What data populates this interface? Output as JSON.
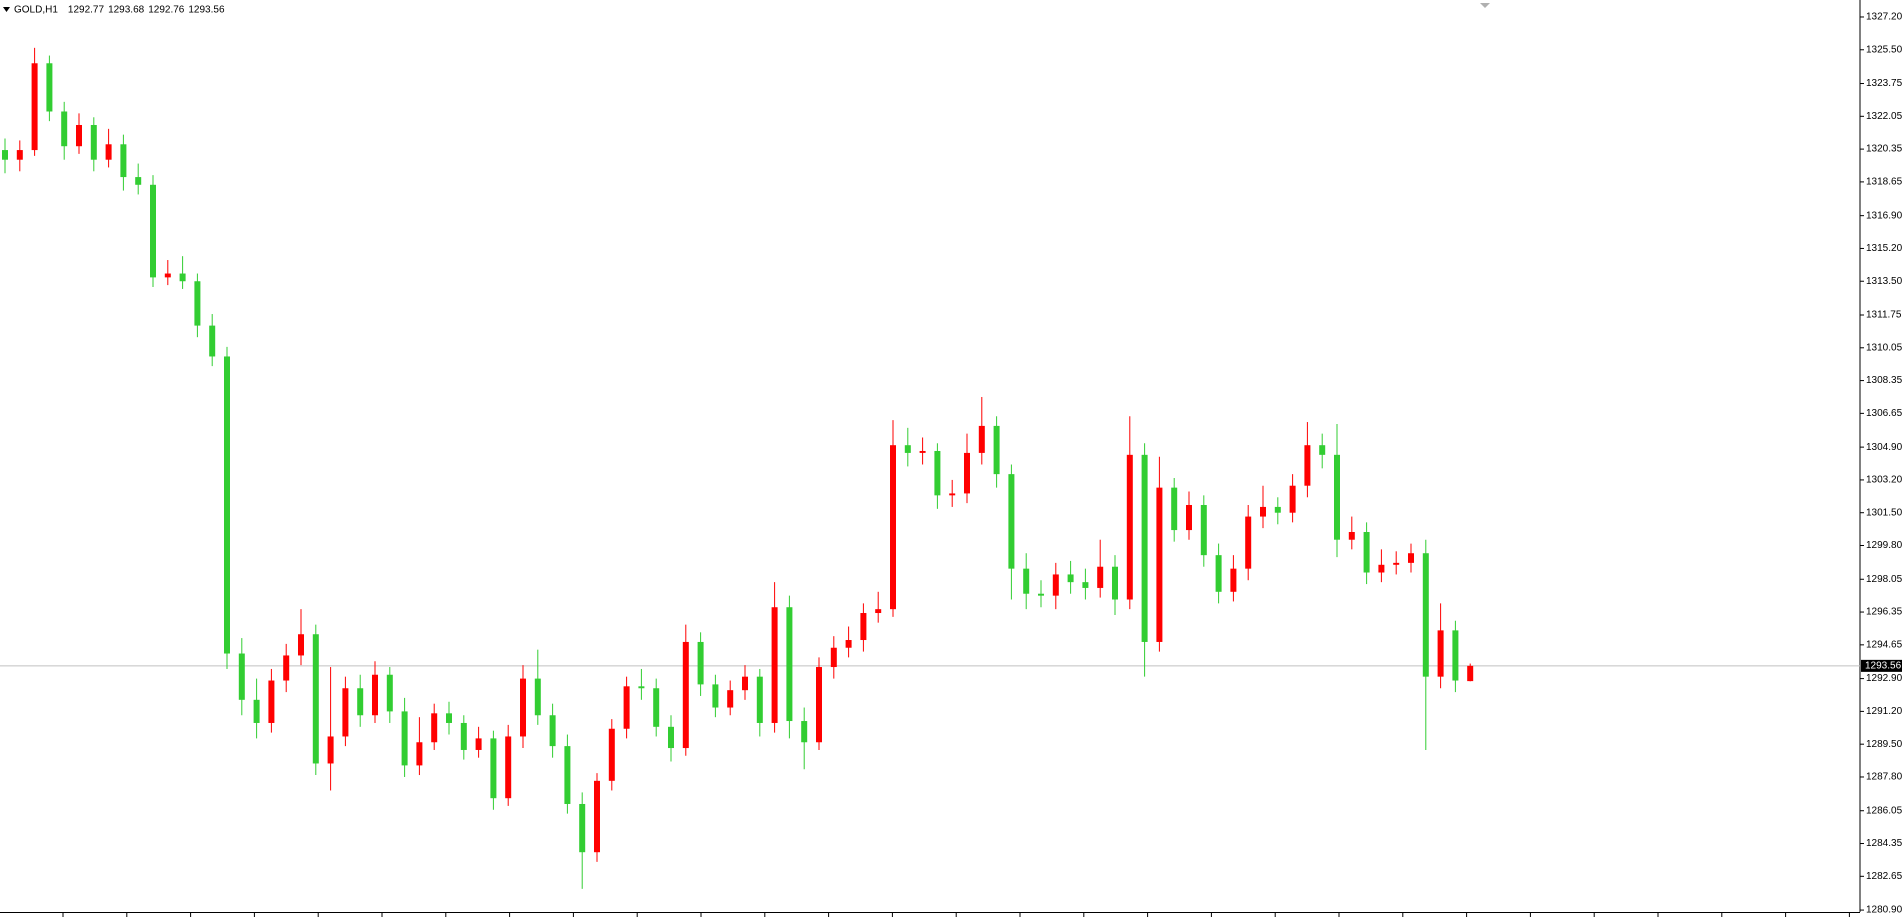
{
  "chart_data": {
    "type": "candlestick",
    "title": "GOLD,H1",
    "up_color": "#ff0000",
    "down_color": "#32cd32",
    "background": "#ffffff",
    "ylim": [
      1280.8,
      1328.08
    ],
    "yticks": [
      {
        "value": 1327.2,
        "label": "1327.20"
      },
      {
        "value": 1325.5,
        "label": "1325.50"
      },
      1323.75,
      1322.05,
      1320.35,
      1318.65,
      {
        "value": 1316.9,
        "label": "1316.90"
      },
      {
        "value": 1315.2,
        "label": "1315.20"
      },
      {
        "value": 1313.5,
        "label": "1313.50"
      },
      1311.75,
      1310.05,
      1308.35,
      1306.65,
      {
        "value": 1304.9,
        "label": "1304.90"
      },
      {
        "value": 1303.2,
        "label": "1303.20"
      },
      {
        "value": 1301.5,
        "label": "1301.50"
      },
      {
        "value": 1299.8,
        "label": "1299.80"
      },
      1298.05,
      1296.35,
      1294.65,
      {
        "value": 1292.9,
        "label": "1292.90"
      },
      {
        "value": 1291.2,
        "label": "1291.20"
      },
      {
        "value": 1289.5,
        "label": "1289.50"
      },
      {
        "value": 1287.8,
        "label": "1287.80"
      },
      1286.05,
      1284.35,
      1282.65,
      {
        "value": 1280.9,
        "label": "1280.90"
      }
    ],
    "open": [
      1320.3,
      1319.8,
      1320.3,
      1324.8,
      1322.3,
      1320.5,
      1321.6,
      1319.8,
      1320.6,
      1318.9,
      1318.5,
      1313.7,
      1313.9,
      1313.5,
      1311.2,
      1309.6,
      1294.2,
      1291.8,
      1290.6,
      1292.8,
      1294.1,
      1295.2,
      1288.5,
      1289.9,
      1292.4,
      1291,
      1293.1,
      1291.2,
      1288.4,
      1289.6,
      1291.1,
      1290.6,
      1289.2,
      1289.8,
      1286.7,
      1289.9,
      1292.9,
      1291,
      1289.4,
      1286.4,
      1283.9,
      1287.6,
      1290.3,
      1292.5,
      1292.4,
      1290.4,
      1289.3,
      1294.8,
      1292.6,
      1291.4,
      1292.3,
      1293,
      1290.6,
      1296.6,
      1290.7,
      1289.6,
      1293.5,
      1294.5,
      1294.9,
      1296.3,
      1296.5,
      1305,
      1304.6,
      1304.7,
      1302.4,
      1302.5,
      1304.6,
      1306,
      1303.5,
      1298.6,
      1297.3,
      1297.2,
      1298.3,
      1297.9,
      1297.6,
      1298.7,
      1297,
      1304.5,
      1294.8,
      1302.8,
      1300.6,
      1301.9,
      1299.3,
      1297.4,
      1298.6,
      1301.3,
      1301.8,
      1301.5,
      1302.9,
      1305,
      1304.5,
      1300.1,
      1300.5,
      1298.4,
      1298.8,
      1298.9,
      1299.4,
      1293,
      1295.4,
      1292.77
    ],
    "high": [
      1320.9,
      1320.8,
      1325.6,
      1325.2,
      1322.8,
      1322.2,
      1322,
      1321.4,
      1321.1,
      1319.6,
      1319,
      1314.6,
      1314.8,
      1313.9,
      1311.8,
      1310.1,
      1295,
      1292.9,
      1293.4,
      1294.7,
      1296.5,
      1295.7,
      1293.5,
      1293,
      1293.1,
      1293.8,
      1293.5,
      1291.9,
      1290.9,
      1291.6,
      1291.7,
      1291,
      1290.4,
      1290.2,
      1290.5,
      1293.6,
      1294.4,
      1291.6,
      1290,
      1287,
      1288,
      1290.8,
      1293,
      1293.4,
      1292.9,
      1291,
      1295.7,
      1295.3,
      1293.1,
      1292.8,
      1293.6,
      1293.4,
      1297.9,
      1297.2,
      1291.4,
      1294,
      1295.1,
      1295.6,
      1296.8,
      1297.4,
      1306.3,
      1305.9,
      1305.4,
      1305.1,
      1303.2,
      1305.6,
      1307.5,
      1306.5,
      1304,
      1299.4,
      1298,
      1298.9,
      1299,
      1298.6,
      1300.1,
      1299.3,
      1306.5,
      1305.1,
      1304.4,
      1303.3,
      1302.6,
      1302.4,
      1299.9,
      1299.3,
      1301.9,
      1302.9,
      1302.3,
      1303.5,
      1306.2,
      1305.6,
      1306.1,
      1301.3,
      1301,
      1299.6,
      1299.5,
      1299.9,
      1300.1,
      1296.8,
      1295.9,
      1293.68
    ],
    "low": [
      1319.1,
      1319.2,
      1320,
      1321.8,
      1319.8,
      1320.1,
      1319.2,
      1319.4,
      1318.2,
      1318,
      1313.2,
      1313.3,
      1313.1,
      1310.6,
      1309.1,
      1293.4,
      1291,
      1289.8,
      1290.1,
      1292.2,
      1293.6,
      1287.9,
      1287.1,
      1289.4,
      1290.4,
      1290.6,
      1290.6,
      1287.8,
      1287.9,
      1289.2,
      1290,
      1288.7,
      1288.8,
      1286.1,
      1286.3,
      1289.3,
      1290.5,
      1288.8,
      1285.9,
      1282,
      1283.4,
      1287.1,
      1289.8,
      1291.8,
      1289.9,
      1288.6,
      1288.9,
      1292,
      1290.9,
      1291,
      1291.8,
      1289.9,
      1290.1,
      1289.8,
      1288.2,
      1289.2,
      1292.9,
      1294,
      1294.3,
      1295.8,
      1296.1,
      1303.9,
      1304,
      1301.7,
      1301.8,
      1302,
      1304,
      1302.8,
      1297,
      1296.5,
      1296.6,
      1296.5,
      1297.3,
      1297,
      1297.1,
      1296.2,
      1296.5,
      1293,
      1294.3,
      1300,
      1300.1,
      1298.7,
      1296.8,
      1296.9,
      1298,
      1300.7,
      1300.9,
      1301,
      1302.3,
      1303.8,
      1299.2,
      1299.6,
      1297.8,
      1297.9,
      1298.3,
      1298.4,
      1289.2,
      1292.4,
      1292.2,
      1292.76
    ],
    "close": [
      1319.8,
      1320.3,
      1324.8,
      1322.3,
      1320.5,
      1321.6,
      1319.8,
      1320.6,
      1318.9,
      1318.5,
      1313.7,
      1313.9,
      1313.5,
      1311.2,
      1309.6,
      1294.2,
      1291.8,
      1290.6,
      1292.8,
      1294.1,
      1295.2,
      1288.5,
      1289.9,
      1292.4,
      1291,
      1293.1,
      1291.2,
      1288.4,
      1289.6,
      1291.1,
      1290.6,
      1289.2,
      1289.8,
      1286.7,
      1289.9,
      1292.9,
      1291,
      1289.4,
      1286.4,
      1283.9,
      1287.6,
      1290.3,
      1292.5,
      1292.4,
      1290.4,
      1289.3,
      1294.8,
      1292.6,
      1291.4,
      1292.3,
      1293,
      1290.6,
      1296.6,
      1290.7,
      1289.6,
      1293.5,
      1294.5,
      1294.9,
      1296.3,
      1296.5,
      1305,
      1304.6,
      1304.7,
      1302.4,
      1302.5,
      1304.6,
      1306,
      1303.5,
      1298.6,
      1297.3,
      1297.2,
      1298.3,
      1297.9,
      1297.6,
      1298.7,
      1297,
      1304.5,
      1294.8,
      1302.8,
      1300.6,
      1301.9,
      1299.3,
      1297.4,
      1298.6,
      1301.3,
      1301.8,
      1301.5,
      1302.9,
      1305,
      1304.5,
      1300.1,
      1300.5,
      1298.4,
      1298.8,
      1298.9,
      1299.4,
      1293,
      1295.4,
      1292.8,
      1293.56
    ]
  }
}
